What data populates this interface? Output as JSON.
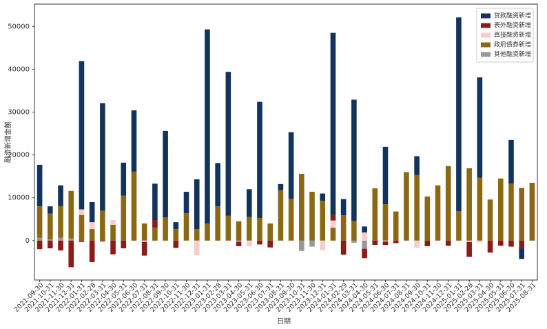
{
  "chart_data": {
    "type": "bar",
    "stacked": true,
    "x_label": "日期",
    "y_label": "融资新增金额",
    "categories": [
      "2021-09-30",
      "2021-10-31",
      "2021-11-30",
      "2021-12-31",
      "2022-01-31",
      "2022-02-28",
      "2022-03-31",
      "2022-04-30",
      "2022-05-31",
      "2022-06-30",
      "2022-07-31",
      "2022-08-31",
      "2022-09-30",
      "2022-10-31",
      "2022-11-30",
      "2022-12-31",
      "2023-01-31",
      "2023-02-28",
      "2023-03-31",
      "2023-04-30",
      "2023-05-31",
      "2023-06-30",
      "2023-07-31",
      "2023-08-31",
      "2023-09-30",
      "2023-10-31",
      "2023-11-30",
      "2023-12-31",
      "2024-01-31",
      "2024-02-29",
      "2024-03-31",
      "2024-04-30",
      "2024-05-31",
      "2024-06-30",
      "2024-07-31",
      "2024-08-31",
      "2024-09-30",
      "2024-10-31",
      "2024-11-30",
      "2024-12-31",
      "2025-01-31",
      "2025-02-28",
      "2025-03-31",
      "2025-04-30",
      "2025-05-31",
      "2025-06-30",
      "2025-07-31",
      "2025-08-31"
    ],
    "series": [
      {
        "name": "贷款融资新增",
        "color": "#12335b",
        "values": [
          9700,
          1700,
          4800,
          0,
          34600,
          4700,
          25100,
          0,
          7700,
          14300,
          0,
          8500,
          20200,
          1600,
          5000,
          11600,
          45300,
          10100,
          33600,
          0,
          6500,
          27100,
          0,
          1400,
          15500,
          0,
          0,
          1700,
          42500,
          3800,
          28300,
          1400,
          0,
          13400,
          0,
          0,
          4400,
          0,
          0,
          0,
          45200,
          0,
          23400,
          0,
          0,
          10200,
          -2500,
          0
        ]
      },
      {
        "name": "表外融资新增",
        "color": "#8b1a1a",
        "values": [
          -2000,
          -1800,
          -2300,
          -6200,
          -300,
          -5000,
          -200,
          -3200,
          -1800,
          0,
          -3200,
          1800,
          0,
          -1700,
          0,
          0,
          0,
          0,
          0,
          -1000,
          0,
          -900,
          -1600,
          0,
          0,
          0,
          0,
          0,
          1300,
          -3300,
          0,
          -2200,
          -1000,
          -800,
          -600,
          0,
          0,
          -1300,
          0,
          -1200,
          0,
          -3500,
          0,
          -2800,
          -1200,
          -1400,
          -1800,
          0
        ]
      },
      {
        "name": "直接融资新增",
        "color": "#f7cccc",
        "values": [
          0,
          0,
          0,
          0,
          1300,
          1600,
          0,
          1100,
          0,
          0,
          -300,
          0,
          0,
          0,
          0,
          -3400,
          0,
          0,
          0,
          0,
          -1300,
          0,
          0,
          0,
          0,
          0,
          0,
          -2200,
          1700,
          0,
          0,
          1900,
          0,
          -200,
          0,
          0,
          -1700,
          0,
          0,
          0,
          0,
          -300,
          -400,
          0,
          0,
          0,
          0,
          0
        ]
      },
      {
        "name": "政府债券新增",
        "color": "#8b6914",
        "values": [
          7300,
          6000,
          7400,
          11100,
          6000,
          2700,
          7000,
          3700,
          10500,
          16100,
          4000,
          3000,
          5400,
          2700,
          6400,
          2700,
          4000,
          8000,
          5800,
          4500,
          5500,
          5300,
          4000,
          11800,
          9800,
          15600,
          11400,
          9300,
          3000,
          5900,
          4600,
          0,
          12200,
          8500,
          6800,
          16000,
          15300,
          10300,
          12900,
          17400,
          6900,
          16900,
          14700,
          9600,
          14500,
          13300,
          12300,
          13500
        ]
      },
      {
        "name": "其他融资新增",
        "color": "#999999",
        "values": [
          700,
          300,
          700,
          500,
          0,
          0,
          0,
          0,
          0,
          0,
          0,
          0,
          0,
          0,
          0,
          0,
          0,
          0,
          0,
          -300,
          0,
          0,
          0,
          0,
          0,
          -2400,
          -1400,
          0,
          0,
          0,
          -500,
          -1900,
          0,
          0,
          0,
          0,
          0,
          0,
          0,
          0,
          0,
          0,
          0,
          0,
          0,
          0,
          0,
          0
        ]
      }
    ],
    "ylim": [
      -9200,
      55200
    ],
    "yticks": [
      0,
      10000,
      20000,
      30000,
      40000,
      50000
    ],
    "grid": false,
    "legend": "upper right"
  }
}
